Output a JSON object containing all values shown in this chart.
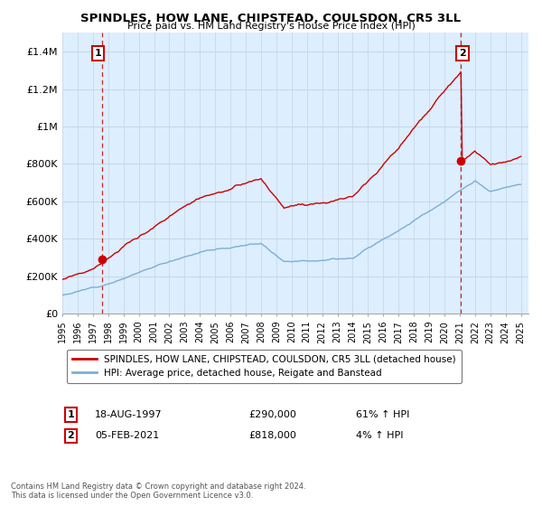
{
  "title": "SPINDLES, HOW LANE, CHIPSTEAD, COULSDON, CR5 3LL",
  "subtitle": "Price paid vs. HM Land Registry's House Price Index (HPI)",
  "ylim": [
    0,
    1500000
  ],
  "yticks": [
    0,
    200000,
    400000,
    600000,
    800000,
    1000000,
    1200000,
    1400000
  ],
  "ytick_labels": [
    "£0",
    "£200K",
    "£400K",
    "£600K",
    "£800K",
    "£1M",
    "£1.2M",
    "£1.4M"
  ],
  "x_start_year": 1995,
  "x_end_year": 2025,
  "sale1_year": 1997.625,
  "sale1_price": 290000,
  "sale2_year": 2021.09,
  "sale2_price": 818000,
  "sale_color": "#cc0000",
  "hpi_color": "#7bafd4",
  "vline_color": "#cc0000",
  "chart_bg": "#ddeeff",
  "legend_sale_label": "SPINDLES, HOW LANE, CHIPSTEAD, COULSDON, CR5 3LL (detached house)",
  "legend_hpi_label": "HPI: Average price, detached house, Reigate and Banstead",
  "note1_label": "1",
  "note1_date": "18-AUG-1997",
  "note1_price": "£290,000",
  "note1_hpi": "61% ↑ HPI",
  "note2_label": "2",
  "note2_date": "05-FEB-2021",
  "note2_price": "£818,000",
  "note2_hpi": "4% ↑ HPI",
  "footer": "Contains HM Land Registry data © Crown copyright and database right 2024.\nThis data is licensed under the Open Government Licence v3.0.",
  "background_color": "#ffffff",
  "grid_color": "#c8d8e8"
}
